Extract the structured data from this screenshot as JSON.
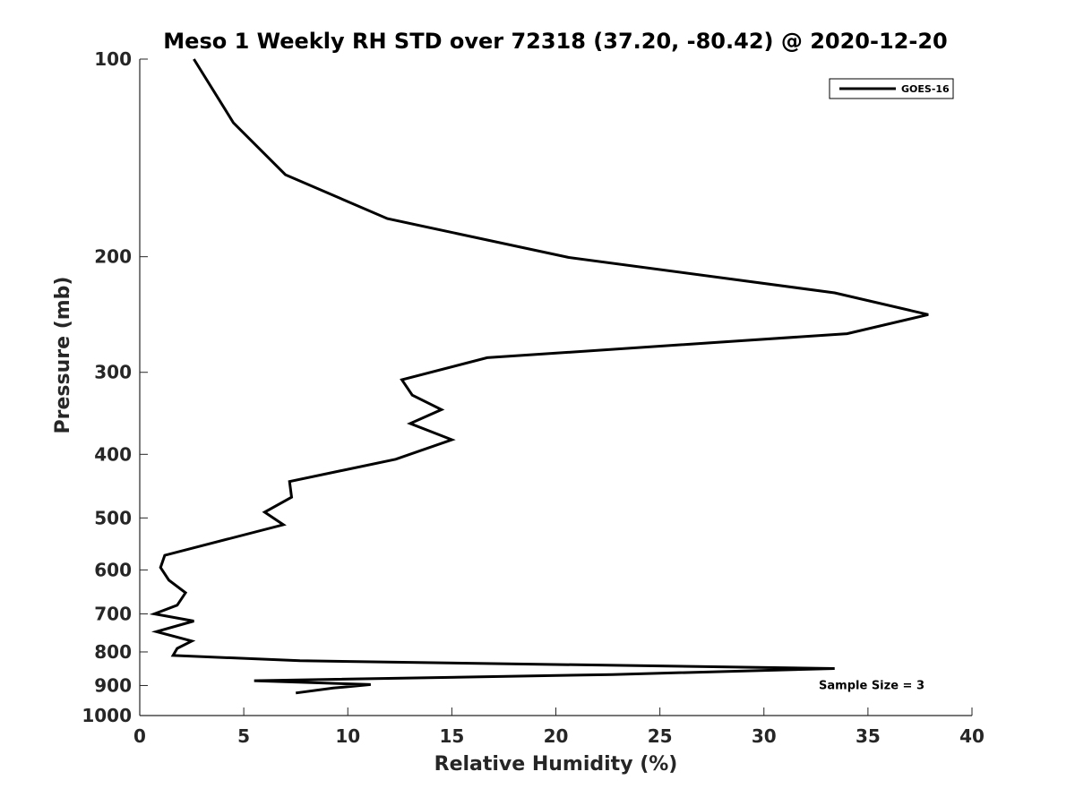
{
  "chart_data": {
    "type": "line",
    "title": "Meso 1 Weekly RH STD over 72318 (37.20, -80.42) @ 2020-12-20",
    "xlabel": "Relative Humidity (%)",
    "ylabel": "Pressure (mb)",
    "xlim": [
      0,
      40
    ],
    "ylim": [
      100,
      1000
    ],
    "y_scale": "log",
    "y_reversed": true,
    "x_ticks": [
      "0",
      "5",
      "10",
      "15",
      "20",
      "25",
      "30",
      "35",
      "40"
    ],
    "y_ticks": [
      "100",
      "200",
      "300",
      "400",
      "500",
      "600",
      "700",
      "800",
      "900",
      "1000"
    ],
    "grid": false,
    "legend_position": "top-right",
    "series": [
      {
        "name": "GOES-16",
        "color": "#000000",
        "points": [
          [
            2.6,
            100
          ],
          [
            4.5,
            125
          ],
          [
            7.0,
            150
          ],
          [
            11.9,
            175
          ],
          [
            20.6,
            200.5
          ],
          [
            33.4,
            227
          ],
          [
            37.9,
            245
          ],
          [
            34.0,
            262
          ],
          [
            16.7,
            285
          ],
          [
            12.6,
            308
          ],
          [
            13.1,
            325
          ],
          [
            14.5,
            342
          ],
          [
            13.0,
            359
          ],
          [
            15.0,
            380
          ],
          [
            12.3,
            407
          ],
          [
            7.2,
            440
          ],
          [
            7.3,
            465
          ],
          [
            6.0,
            490
          ],
          [
            6.9,
            512
          ],
          [
            1.2,
            570
          ],
          [
            1.0,
            595
          ],
          [
            1.4,
            622
          ],
          [
            2.2,
            650
          ],
          [
            1.8,
            679
          ],
          [
            0.7,
            700
          ],
          [
            2.6,
            718
          ],
          [
            0.8,
            745
          ],
          [
            2.5,
            770
          ],
          [
            1.8,
            790
          ],
          [
            1.6,
            810
          ],
          [
            7.7,
            825
          ],
          [
            33.4,
            848
          ],
          [
            22.7,
            866
          ],
          [
            5.5,
            885
          ],
          [
            11.1,
            897
          ],
          [
            9.3,
            908
          ],
          [
            7.5,
            924
          ]
        ]
      }
    ],
    "annotations": [
      {
        "text": "Sample Size = 3",
        "x": 33.5,
        "y": 897
      }
    ]
  }
}
